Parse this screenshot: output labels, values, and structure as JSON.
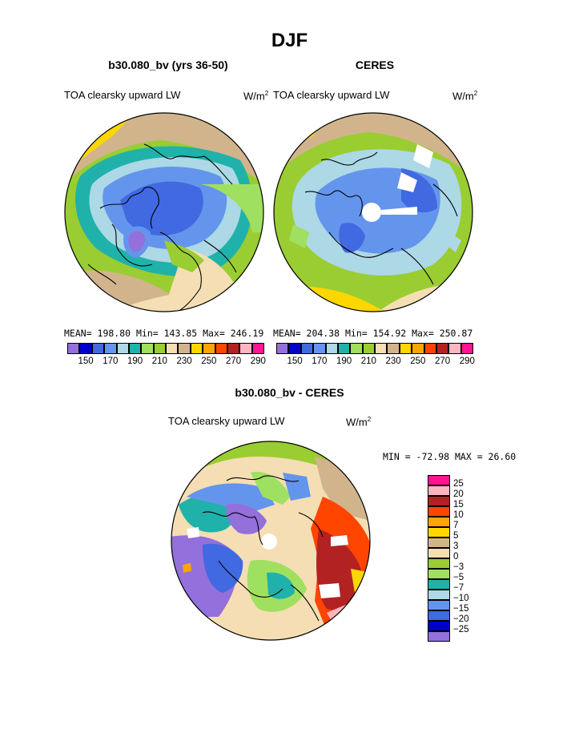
{
  "title": "DJF",
  "units_sup": "2",
  "left_panel": {
    "title": "b30.080_bv (yrs 36-50)",
    "variable": "TOA clearsky upward LW",
    "units_base": "W/m",
    "stats": "MEAN= 198.80  Min= 143.85  Max= 246.19"
  },
  "right_panel": {
    "title": "CERES",
    "variable": "TOA clearsky upward LW",
    "units_base": "W/m",
    "stats": "MEAN= 204.38  Min= 154.92  Max= 250.87"
  },
  "bottom_panel": {
    "title": "b30.080_bv - CERES",
    "variable": "TOA clearsky upward LW",
    "units_base": "W/m",
    "stats": "MIN = -72.98 MAX =  26.60"
  },
  "colorbar_top": {
    "colors": [
      "#9370db",
      "#0000cd",
      "#4169e1",
      "#6495ed",
      "#add8e6",
      "#20b2aa",
      "#a0e060",
      "#9acd32",
      "#f5deb3",
      "#d2b48c",
      "#ffd700",
      "#ffa500",
      "#ff4500",
      "#b22222",
      "#ffb6c1",
      "#ff1493"
    ],
    "labels": [
      "150",
      "170",
      "190",
      "210",
      "230",
      "250",
      "270",
      "290"
    ]
  },
  "colorbar_diff": {
    "colors": [
      "#ff1493",
      "#ffb6c1",
      "#b22222",
      "#ff4500",
      "#ffa500",
      "#ffd700",
      "#d2b48c",
      "#f5deb3",
      "#9acd32",
      "#a0e060",
      "#20b2aa",
      "#add8e6",
      "#6495ed",
      "#4169e1",
      "#0000cd",
      "#9370db"
    ],
    "labels": [
      "25",
      "20",
      "15",
      "10",
      "7",
      "5",
      "3",
      "0",
      "−3",
      "−5",
      "−7",
      "−10",
      "−15",
      "−20",
      "−25"
    ]
  }
}
